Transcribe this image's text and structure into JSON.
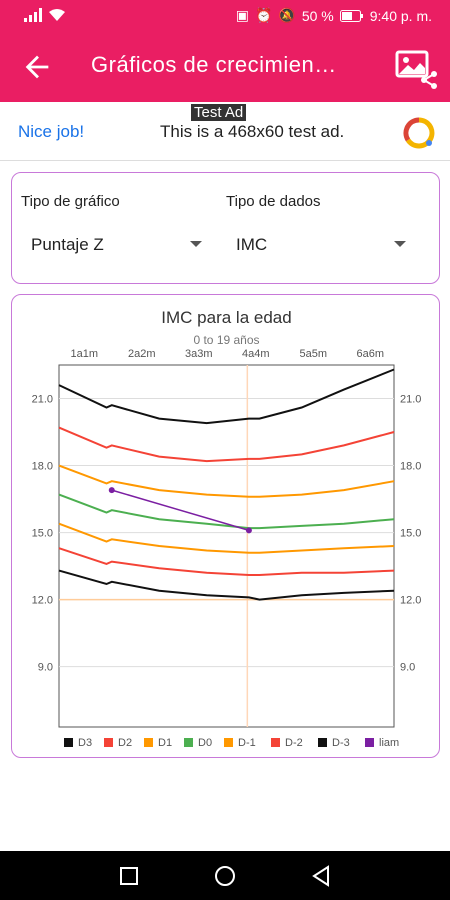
{
  "status": {
    "battery": "50 %",
    "time": "9:40 p. m."
  },
  "appbar": {
    "title": "Gráficos de crecimien…"
  },
  "ad": {
    "label": "Test Ad",
    "nice": "Nice job!",
    "text": "This is a 468x60 test ad."
  },
  "filters": {
    "chart_type_label": "Tipo de gráfico",
    "chart_type_value": "Puntaje Z",
    "data_type_label": "Tipo de dados",
    "data_type_value": "IMC"
  },
  "colors": {
    "primary": "#ea1e63",
    "card_border": "#c879d9"
  },
  "chart_data": {
    "type": "line",
    "title": "IMC para la edad",
    "subtitle": "0 to 19 años",
    "x_ticks": [
      "1a1m",
      "2a2m",
      "3a3m",
      "4a4m",
      "5a5m",
      "6a6m"
    ],
    "x_tick_positions": [
      1.08,
      2.17,
      3.25,
      4.33,
      5.42,
      6.5
    ],
    "xlim": [
      0.6,
      6.95
    ],
    "ylim": [
      6.3,
      22.5
    ],
    "y_ticks": [
      9.0,
      12.0,
      15.0,
      18.0,
      21.0
    ],
    "grid": true,
    "reference_lines": {
      "x": 4.17,
      "y": 12.0
    },
    "series": [
      {
        "name": "D3",
        "color": "#111111",
        "x": [
          0.6,
          1.5,
          1.6,
          2.5,
          3.4,
          4.2,
          4.4,
          5.2,
          6.0,
          6.95
        ],
        "y": [
          21.6,
          20.6,
          20.7,
          20.1,
          19.9,
          20.1,
          20.1,
          20.6,
          21.4,
          22.3
        ]
      },
      {
        "name": "D2",
        "color": "#f44336",
        "x": [
          0.6,
          1.5,
          1.6,
          2.5,
          3.4,
          4.2,
          4.4,
          5.2,
          6.0,
          6.95
        ],
        "y": [
          19.7,
          18.8,
          18.9,
          18.4,
          18.2,
          18.3,
          18.3,
          18.5,
          18.9,
          19.5
        ]
      },
      {
        "name": "D1",
        "color": "#ff9800",
        "x": [
          0.6,
          1.5,
          1.6,
          2.5,
          3.4,
          4.2,
          4.4,
          5.2,
          6.0,
          6.95
        ],
        "y": [
          18.0,
          17.2,
          17.3,
          16.9,
          16.7,
          16.6,
          16.6,
          16.7,
          16.9,
          17.3
        ]
      },
      {
        "name": "D0",
        "color": "#4caf50",
        "x": [
          0.6,
          1.5,
          1.6,
          2.5,
          3.4,
          4.2,
          4.4,
          5.2,
          6.0,
          6.95
        ],
        "y": [
          16.7,
          15.9,
          16.0,
          15.6,
          15.4,
          15.2,
          15.2,
          15.3,
          15.4,
          15.6
        ]
      },
      {
        "name": "D-1",
        "color": "#ff9800",
        "x": [
          0.6,
          1.5,
          1.6,
          2.5,
          3.4,
          4.2,
          4.4,
          5.2,
          6.0,
          6.95
        ],
        "y": [
          15.4,
          14.6,
          14.7,
          14.4,
          14.2,
          14.1,
          14.1,
          14.2,
          14.3,
          14.4
        ]
      },
      {
        "name": "D-2",
        "color": "#f44336",
        "x": [
          0.6,
          1.5,
          1.6,
          2.5,
          3.4,
          4.2,
          4.4,
          5.2,
          6.0,
          6.95
        ],
        "y": [
          14.3,
          13.6,
          13.7,
          13.4,
          13.2,
          13.1,
          13.1,
          13.2,
          13.2,
          13.3
        ]
      },
      {
        "name": "D-3",
        "color": "#111111",
        "x": [
          0.6,
          1.5,
          1.6,
          2.5,
          3.4,
          4.2,
          4.4,
          5.2,
          6.0,
          6.95
        ],
        "y": [
          13.3,
          12.7,
          12.8,
          12.4,
          12.2,
          12.1,
          12.0,
          12.2,
          12.3,
          12.4
        ]
      },
      {
        "name": "liam",
        "color": "#7b1fa2",
        "x": [
          1.6,
          4.2
        ],
        "y": [
          16.9,
          15.1
        ],
        "markers": true
      }
    ]
  }
}
